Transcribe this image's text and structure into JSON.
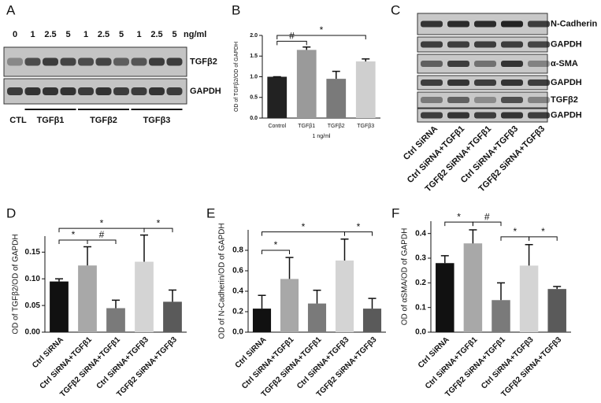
{
  "panel_labels": [
    "A",
    "B",
    "C",
    "D",
    "E",
    "F"
  ],
  "blot_a": {
    "lanes": [
      "0",
      "1",
      "2.5",
      "5",
      "1",
      "2.5",
      "5",
      "1",
      "2.5",
      "5"
    ],
    "unit": "ng/ml",
    "rows": [
      "TGFβ2",
      "GAPDH"
    ],
    "groups": [
      "CTL",
      "TGFβ1",
      "TGFβ2",
      "TGFβ3"
    ]
  },
  "blot_c": {
    "rows": [
      "N-Cadherin",
      "GAPDH",
      "α-SMA",
      "GAPDH",
      "TGFβ2",
      "GAPDH"
    ],
    "lanes": [
      "Ctrl SiRNA",
      "Ctrl SiRNA+TGFβ1",
      "TGFβ2 SiRNA+TGFβ1",
      "Ctrl SiRNA+TGFβ3",
      "TGFβ2 SiRNA+TGFβ3"
    ]
  },
  "chart_data": [
    {
      "type": "bar",
      "y_label": "OD of TGFβ2/OD of GAPDH",
      "x_label": "1 ng/ml",
      "categories": [
        "Control",
        "TGFβ1",
        "TGFβ2",
        "TGFβ3"
      ],
      "values": [
        1.0,
        1.65,
        0.95,
        1.37
      ],
      "errors": [
        0.0,
        0.07,
        0.18,
        0.06
      ],
      "colors": [
        "#222222",
        "#9a9a9a",
        "#7a7a7a",
        "#cfcfcf"
      ],
      "ylim": [
        0,
        2.0
      ],
      "yticks": [
        {
          "value": 0,
          "label": "0.0"
        },
        {
          "value": 0.5,
          "label": "0.5"
        },
        {
          "value": 1.0,
          "label": "1.0"
        },
        {
          "value": 1.5,
          "label": "1.5"
        },
        {
          "value": 2.0,
          "label": "2.0"
        }
      ],
      "annotations": [
        {
          "label": "#",
          "between": [
            0,
            1
          ]
        },
        {
          "label": "*",
          "between": [
            0,
            3
          ]
        }
      ]
    },
    {
      "type": "bar",
      "y_label": "OD of TGFβ2/OD of GAPDH",
      "categories": [
        "Ctrl SiRNA",
        "Ctrl SiRNA+TGFβ1",
        "TGFβ2 SiRNA+TGFβ1",
        "Ctrl SiRNA+TGFβ3",
        "TGFβ2 SiRNA+TGFβ3"
      ],
      "values": [
        0.095,
        0.125,
        0.045,
        0.132,
        0.057
      ],
      "errors": [
        0.005,
        0.035,
        0.015,
        0.05,
        0.022
      ],
      "colors": [
        "#111111",
        "#a8a8a8",
        "#7a7a7a",
        "#d4d4d4",
        "#5a5a5a"
      ],
      "ylim": [
        0,
        0.18
      ],
      "yticks": [
        {
          "value": 0,
          "label": "0.00"
        },
        {
          "value": 0.05,
          "label": "0.05"
        },
        {
          "value": 0.1,
          "label": "0.10"
        },
        {
          "value": 0.15,
          "label": "0.15"
        }
      ],
      "annotations": [
        {
          "label": "*",
          "between": [
            0,
            1
          ]
        },
        {
          "label": "#",
          "between": [
            1,
            2
          ]
        },
        {
          "label": "*",
          "between": [
            0,
            3
          ]
        },
        {
          "label": "*",
          "between": [
            3,
            4
          ]
        }
      ]
    },
    {
      "type": "bar",
      "y_label": "OD of N-Cadherin/OD of GAPDH",
      "categories": [
        "Ctrl SiRNA",
        "Ctrl SiRNA+TGFβ1",
        "TGFβ2 SiRNA+TGFβ1",
        "Ctrl SiRNA+TGFβ3",
        "TGFβ2 SiRNA+TGFβ3"
      ],
      "values": [
        0.23,
        0.52,
        0.28,
        0.7,
        0.23
      ],
      "errors": [
        0.13,
        0.21,
        0.13,
        0.21,
        0.1
      ],
      "colors": [
        "#111111",
        "#a8a8a8",
        "#7a7a7a",
        "#d4d4d4",
        "#5a5a5a"
      ],
      "ylim": [
        0,
        1.0
      ],
      "yticks": [
        {
          "value": 0,
          "label": "0.0"
        },
        {
          "value": 0.2,
          "label": "0.2"
        },
        {
          "value": 0.4,
          "label": "0.4"
        },
        {
          "value": 0.6,
          "label": "0.6"
        },
        {
          "value": 0.8,
          "label": "0.8"
        }
      ],
      "annotations": [
        {
          "label": "*",
          "between": [
            0,
            1
          ]
        },
        {
          "label": "*",
          "between": [
            0,
            3
          ]
        },
        {
          "label": "*",
          "between": [
            3,
            4
          ]
        }
      ]
    },
    {
      "type": "bar",
      "y_label": "OD of αSMA/OD of GAPDH",
      "categories": [
        "Ctrl SiRNA",
        "Ctrl SiRNA+TGFβ1",
        "TGFβ2 SiRNA+TGFβ1",
        "Ctrl SiRNA+TGFβ3",
        "TGFβ2 SiRNA+TGFβ3"
      ],
      "values": [
        0.28,
        0.36,
        0.13,
        0.27,
        0.175
      ],
      "errors": [
        0.03,
        0.055,
        0.07,
        0.085,
        0.01
      ],
      "colors": [
        "#111111",
        "#a8a8a8",
        "#7a7a7a",
        "#d4d4d4",
        "#5a5a5a"
      ],
      "ylim": [
        0,
        0.45
      ],
      "yticks": [
        {
          "value": 0,
          "label": "0.0"
        },
        {
          "value": 0.1,
          "label": "0.1"
        },
        {
          "value": 0.2,
          "label": "0.2"
        },
        {
          "value": 0.3,
          "label": "0.3"
        },
        {
          "value": 0.4,
          "label": "0.4"
        }
      ],
      "annotations": [
        {
          "label": "*",
          "between": [
            0,
            1
          ]
        },
        {
          "label": "#",
          "between": [
            1,
            2
          ]
        },
        {
          "label": "*",
          "between": [
            2,
            3
          ]
        },
        {
          "label": "*",
          "between": [
            3,
            4
          ]
        }
      ]
    }
  ]
}
